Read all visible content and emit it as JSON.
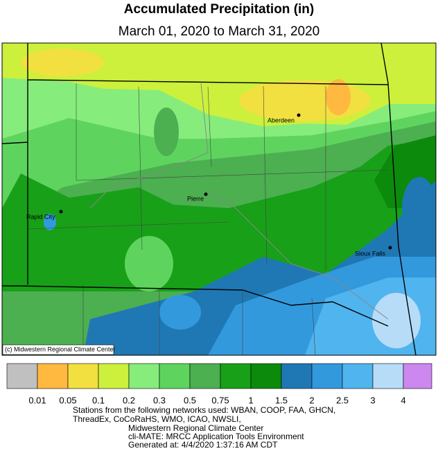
{
  "header": {
    "title": "Accumulated Precipitation (in)",
    "subtitle": "March 01, 2020 to March 31, 2020"
  },
  "map": {
    "cities": [
      {
        "label": "Aberdeen"
      },
      {
        "label": "Pierre"
      },
      {
        "label": "Rapid City"
      },
      {
        "label": "Sioux Falls"
      }
    ],
    "credit": "(c) Midwestern Regional Climate Center"
  },
  "legend": {
    "breaks": [
      0.01,
      0.05,
      0.1,
      0.2,
      0.3,
      0.5,
      0.75,
      1,
      1.5,
      2,
      2.5,
      3,
      4
    ],
    "colors": [
      "#c0c0c0",
      "#ffb840",
      "#f2e040",
      "#ccf03c",
      "#86ec7c",
      "#5ed45e",
      "#4caf50",
      "#18a018",
      "#0c8a0c",
      "#1f78b4",
      "#3399dd",
      "#50b4ee",
      "#b6dcf8",
      "#cc88ee"
    ]
  },
  "footer": {
    "lines": [
      "Stations from the following networks used: WBAN, COOP, FAA, GHCN,",
      "ThreadEx, CoCoRaHS, WMO, ICAO, NWSLI,",
      "Midwestern Regional Climate Center",
      "cli-MATE: MRCC Application Tools Environment",
      "Generated at: 4/4/2020 1:37:16 AM CDT"
    ]
  }
}
